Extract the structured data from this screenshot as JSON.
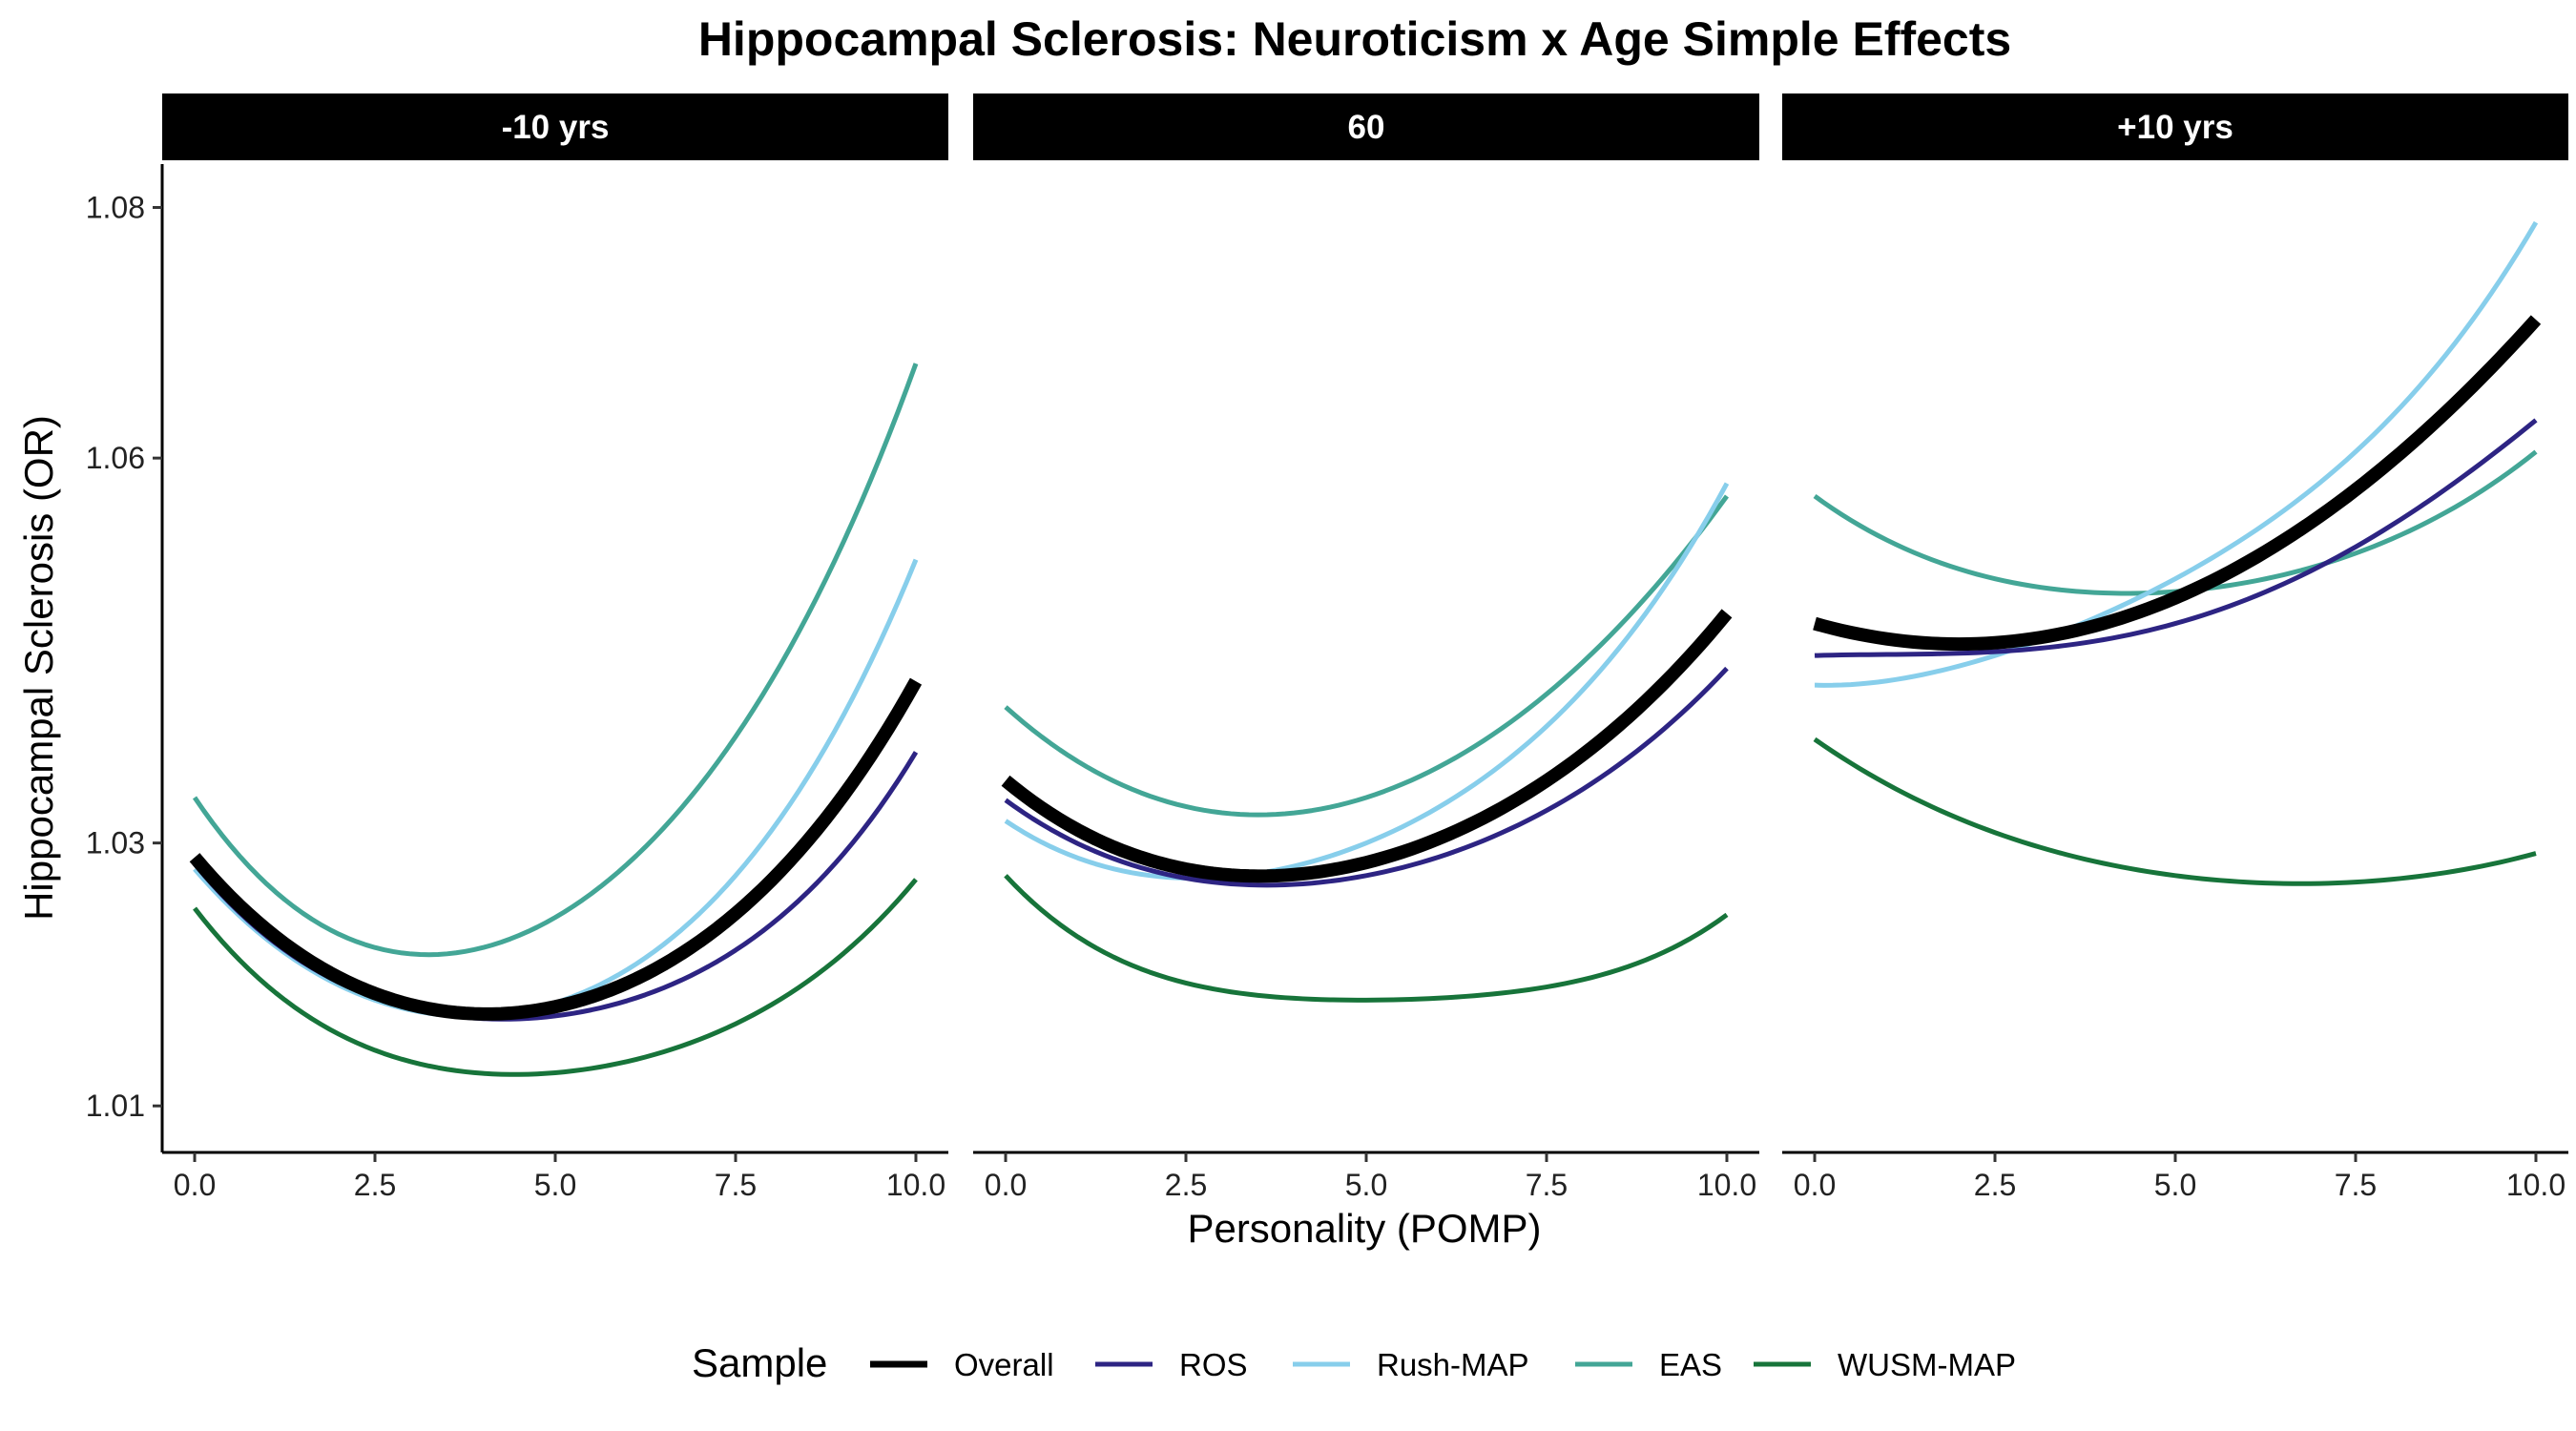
{
  "chart_data": {
    "type": "line",
    "title": "Hippocampal Sclerosis: Neuroticism x Age Simple Effects",
    "xlabel": "Personality (POMP)",
    "ylabel": "Hippocampal Sclerosis (OR)",
    "xlim": [
      -0.45,
      10.45
    ],
    "ylim": [
      1.0065,
      1.0835
    ],
    "x_ticks": [
      0,
      2.5,
      5,
      7.5,
      10
    ],
    "x_tick_labels": [
      "0.0",
      "2.5",
      "5.0",
      "7.5",
      "10.0"
    ],
    "y_ticks": [
      1.01,
      1.03,
      1.06,
      1.08
    ],
    "y_tick_labels": [
      "1.01",
      "1.03",
      "1.06",
      "1.08"
    ],
    "grid": false,
    "legend": {
      "title": "Sample",
      "position": "bottom",
      "entries": [
        "Overall",
        "ROS",
        "Rush-MAP",
        "EAS",
        "WUSM-MAP"
      ]
    },
    "series_styles": [
      {
        "name": "Overall",
        "color": "#000000",
        "width": 14
      },
      {
        "name": "ROS",
        "color": "#2d2483",
        "width": 5
      },
      {
        "name": "Rush-MAP",
        "color": "#87ceeb",
        "width": 5
      },
      {
        "name": "EAS",
        "color": "#43a696",
        "width": 5
      },
      {
        "name": "WUSM-MAP",
        "color": "#17743a",
        "width": 5
      }
    ],
    "panels": [
      {
        "strip": "-10 yrs",
        "x": [
          0,
          2.5,
          5,
          7.5,
          10
        ],
        "series": [
          {
            "name": "Overall",
            "values": [
              1.0289,
              1.0185,
              1.0175,
              1.0246,
              1.0425
            ]
          },
          {
            "name": "ROS",
            "values": [
              1.0284,
              1.0182,
              1.0168,
              1.0218,
              1.037
            ]
          },
          {
            "name": "Rush-MAP",
            "values": [
              1.028,
              1.018,
              1.0178,
              1.0275,
              1.052
            ]
          },
          {
            "name": "EAS",
            "values": [
              1.0335,
              1.022,
              1.0243,
              1.0382,
              1.0675
            ]
          },
          {
            "name": "WUSM-MAP",
            "values": [
              1.025,
              1.0142,
              1.0125,
              1.0162,
              1.0272
            ]
          }
        ]
      },
      {
        "strip": "60",
        "x": [
          0,
          2.5,
          5,
          7.5,
          10
        ],
        "series": [
          {
            "name": "Overall",
            "values": [
              1.0348,
              1.028,
              1.0285,
              1.0348,
              1.0478
            ]
          },
          {
            "name": "ROS",
            "values": [
              1.0333,
              1.0273,
              1.0275,
              1.0325,
              1.0435
            ]
          },
          {
            "name": "Rush-MAP",
            "values": [
              1.0317,
              1.0273,
              1.03,
              1.039,
              1.058
            ]
          },
          {
            "name": "EAS",
            "values": [
              1.0405,
              1.0328,
              1.0335,
              1.0415,
              1.057
            ]
          },
          {
            "name": "WUSM-MAP",
            "values": [
              1.0275,
              1.0193,
              1.018,
              1.019,
              1.0245
            ]
          }
        ]
      },
      {
        "strip": "+10 yrs",
        "x": [
          0,
          2.5,
          5,
          7.5,
          10
        ],
        "series": [
          {
            "name": "Overall",
            "values": [
              1.047,
              1.0455,
              1.049,
              1.0575,
              1.071
            ]
          },
          {
            "name": "ROS",
            "values": [
              1.0445,
              1.0448,
              1.047,
              1.053,
              1.063
            ]
          },
          {
            "name": "Rush-MAP",
            "values": [
              1.0422,
              1.0445,
              1.0505,
              1.0605,
              1.0788
            ]
          },
          {
            "name": "EAS",
            "values": [
              1.057,
              1.0505,
              1.0495,
              1.0525,
              1.0605
            ]
          },
          {
            "name": "WUSM-MAP",
            "values": [
              1.038,
              1.0308,
              1.0275,
              1.027,
              1.0292
            ]
          }
        ]
      }
    ]
  }
}
